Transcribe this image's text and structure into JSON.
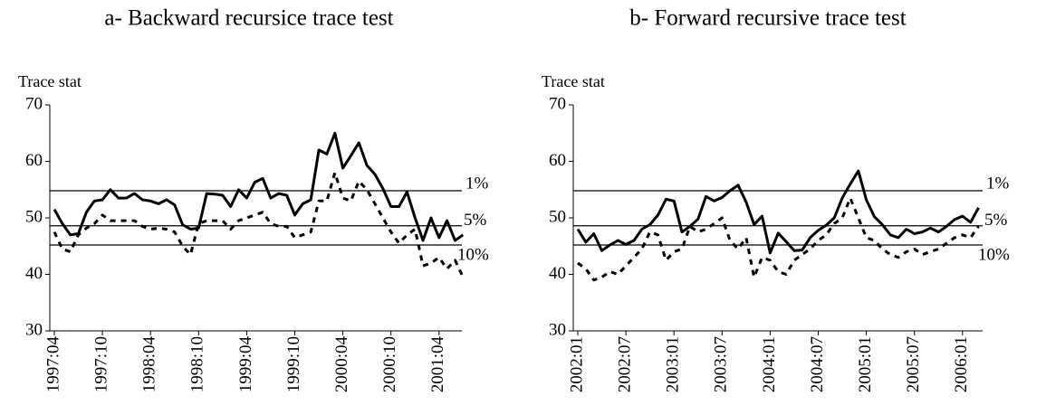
{
  "chart_data": [
    {
      "type": "line",
      "title": "a- Backward recursice trace test",
      "ylabel": "Trace stat",
      "categories": [
        "1997:04",
        null,
        null,
        null,
        null,
        null,
        "1997:10",
        null,
        null,
        null,
        null,
        null,
        "1998:04",
        null,
        null,
        null,
        null,
        null,
        "1998:10",
        null,
        null,
        null,
        null,
        null,
        "1999:04",
        null,
        null,
        null,
        null,
        null,
        "1999:10",
        null,
        null,
        null,
        null,
        null,
        "2000:04",
        null,
        null,
        null,
        null,
        null,
        "2000:10",
        null,
        null,
        null,
        null,
        null,
        "2001:04",
        null,
        null,
        null
      ],
      "series": [
        {
          "color": "#000000",
          "style": "solid",
          "values": [
            51.5,
            49,
            47,
            47.2,
            51,
            53,
            53.2,
            55,
            53.5,
            53.5,
            54.3,
            53.2,
            53,
            52.5,
            53.2,
            52.3,
            48.8,
            48,
            48.2,
            54.3,
            54.2,
            54,
            52,
            55,
            53.5,
            56.3,
            57,
            53.5,
            54.3,
            54,
            50.5,
            52.5,
            53.2,
            62,
            61.3,
            65,
            58.8,
            61,
            63.3,
            59.3,
            57.7,
            55.2,
            52,
            52,
            54.6,
            50,
            46,
            50,
            46.5,
            49.5,
            46,
            47
          ]
        },
        {
          "color": "#000000",
          "style": "dashed",
          "values": [
            47.5,
            44.5,
            44,
            47,
            48.2,
            49,
            50.5,
            49.5,
            49.5,
            49.5,
            49.5,
            48.5,
            48,
            48.2,
            48,
            47.5,
            45,
            43.5,
            49,
            49.5,
            49.5,
            49.5,
            48,
            49.5,
            50,
            50.5,
            51,
            49,
            48.5,
            48.5,
            46.5,
            47,
            47.5,
            53,
            53,
            58,
            53.5,
            53,
            56.5,
            55,
            52.5,
            50,
            47.5,
            45.5,
            47,
            48,
            41.5,
            42,
            43,
            41,
            42.5,
            39.5
          ]
        }
      ],
      "ylim": [
        30,
        70
      ],
      "yticks": [
        30,
        40,
        50,
        60,
        70
      ],
      "hlines": [
        {
          "value": 54.8,
          "label": "1%"
        },
        {
          "value": 48.6,
          "label": "5%"
        },
        {
          "value": 45.2,
          "label": "10%"
        }
      ]
    },
    {
      "type": "line",
      "title": "b- Forward recursive trace test",
      "ylabel": "Trace stat",
      "categories": [
        "2002:01",
        null,
        null,
        null,
        null,
        null,
        "2002:07",
        null,
        null,
        null,
        null,
        null,
        "2003:01",
        null,
        null,
        null,
        null,
        null,
        "2003:07",
        null,
        null,
        null,
        null,
        null,
        "2004:01",
        null,
        null,
        null,
        null,
        null,
        "2004:07",
        null,
        null,
        null,
        null,
        null,
        "2005:01",
        null,
        null,
        null,
        null,
        null,
        "2005:07",
        null,
        null,
        null,
        null,
        null,
        "2006:01",
        null,
        null
      ],
      "series": [
        {
          "color": "#000000",
          "style": "solid",
          "values": [
            48,
            45.7,
            47.2,
            44.2,
            45.2,
            46,
            45.3,
            46,
            48,
            48.8,
            50.5,
            53.3,
            53,
            47.5,
            48.5,
            49.8,
            53.8,
            53,
            53.6,
            54.8,
            55.8,
            52.8,
            48.8,
            50.3,
            43.8,
            47.3,
            45.8,
            44.2,
            44.3,
            46.5,
            47.8,
            48.7,
            50,
            53.5,
            56,
            58.3,
            53.2,
            50.2,
            48.8,
            47,
            46.5,
            48,
            47.2,
            47.5,
            48.2,
            47.5,
            48.5,
            49.7,
            50.3,
            49.2,
            51.8
          ]
        },
        {
          "color": "#000000",
          "style": "dashed",
          "values": [
            42,
            41,
            39,
            39.5,
            40.5,
            40,
            41.5,
            43,
            44.5,
            47.5,
            47,
            42.5,
            44,
            44.5,
            48.5,
            47.5,
            48,
            49,
            50,
            46,
            44.5,
            46.5,
            39.5,
            43,
            42.5,
            40.5,
            40,
            42.5,
            43.5,
            44.5,
            46,
            47,
            49,
            50,
            53.5,
            50,
            46.5,
            46,
            44.5,
            43.5,
            43,
            44,
            44.5,
            43.5,
            44,
            44.5,
            45.5,
            46.5,
            47,
            46.5,
            48.5
          ]
        }
      ],
      "ylim": [
        30,
        70
      ],
      "yticks": [
        30,
        40,
        50,
        60,
        70
      ],
      "hlines": [
        {
          "value": 54.8,
          "label": "1%"
        },
        {
          "value": 48.6,
          "label": "5%"
        },
        {
          "value": 45.2,
          "label": "10%"
        }
      ]
    }
  ]
}
